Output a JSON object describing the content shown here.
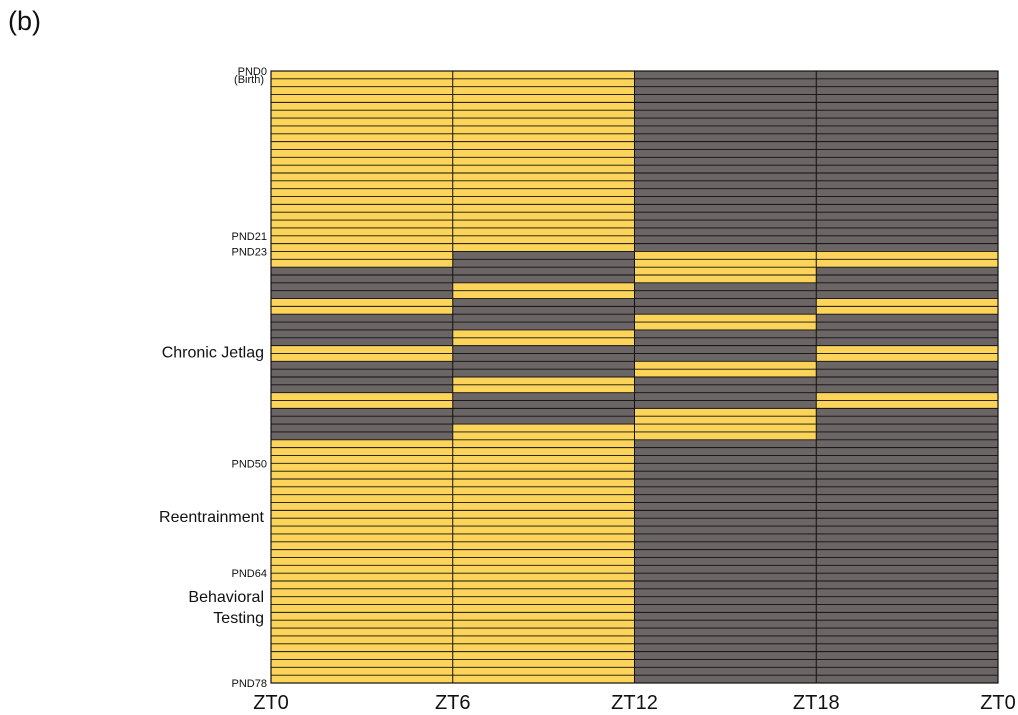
{
  "panel_label": "(b)",
  "chart_data": {
    "type": "heatmap",
    "title": "",
    "xlabel": "",
    "ylabel": "",
    "x_ticks": [
      "ZT0",
      "ZT6",
      "ZT12",
      "ZT18",
      "ZT0"
    ],
    "y_ticks": [
      {
        "day": 0,
        "label": "PND0"
      },
      {
        "day": 21,
        "label": "PND21"
      },
      {
        "day": 23,
        "label": "PND23"
      },
      {
        "day": 50,
        "label": "PND50"
      },
      {
        "day": 64,
        "label": "PND64"
      },
      {
        "day": 78,
        "label": "PND78"
      }
    ],
    "annotations": [
      {
        "day": 1,
        "lines": [
          "(Birth)"
        ],
        "size": "small"
      },
      {
        "day": 36,
        "lines": [
          "Chronic Jetlag"
        ],
        "size": "large"
      },
      {
        "day": 57,
        "lines": [
          "Reentrainment"
        ],
        "size": "large"
      },
      {
        "day": 68.5,
        "lines": [
          "Behavioral",
          "Testing"
        ],
        "size": "large"
      }
    ],
    "days": 78,
    "columns": [
      "ZT0-ZT6",
      "ZT6-ZT12",
      "ZT12-ZT18",
      "ZT18-ZT0"
    ],
    "colors": {
      "light": "#FDD45A",
      "dark": "#6B6566",
      "line": "#111111"
    },
    "segments": [
      {
        "from_day": 0,
        "to_day": 23,
        "pattern": [
          "light",
          "light",
          "dark",
          "dark"
        ]
      },
      {
        "from_day": 23,
        "to_day": 25,
        "pattern": [
          "light",
          "dark",
          "light",
          "light"
        ]
      },
      {
        "from_day": 25,
        "to_day": 27,
        "pattern": [
          "dark",
          "dark",
          "light",
          "dark"
        ]
      },
      {
        "from_day": 27,
        "to_day": 29,
        "pattern": [
          "dark",
          "light",
          "dark",
          "dark"
        ]
      },
      {
        "from_day": 29,
        "to_day": 31,
        "pattern": [
          "light",
          "dark",
          "dark",
          "light"
        ]
      },
      {
        "from_day": 31,
        "to_day": 33,
        "pattern": [
          "dark",
          "dark",
          "light",
          "dark"
        ]
      },
      {
        "from_day": 33,
        "to_day": 35,
        "pattern": [
          "dark",
          "light",
          "dark",
          "dark"
        ]
      },
      {
        "from_day": 35,
        "to_day": 37,
        "pattern": [
          "light",
          "dark",
          "dark",
          "light"
        ]
      },
      {
        "from_day": 37,
        "to_day": 39,
        "pattern": [
          "dark",
          "dark",
          "light",
          "dark"
        ]
      },
      {
        "from_day": 39,
        "to_day": 41,
        "pattern": [
          "dark",
          "light",
          "dark",
          "dark"
        ]
      },
      {
        "from_day": 41,
        "to_day": 43,
        "pattern": [
          "light",
          "dark",
          "dark",
          "light"
        ]
      },
      {
        "from_day": 43,
        "to_day": 45,
        "pattern": [
          "dark",
          "dark",
          "light",
          "dark"
        ]
      },
      {
        "from_day": 45,
        "to_day": 47,
        "pattern": [
          "dark",
          "light",
          "light",
          "dark"
        ]
      },
      {
        "from_day": 47,
        "to_day": 78,
        "pattern": [
          "light",
          "light",
          "dark",
          "dark"
        ]
      }
    ]
  }
}
